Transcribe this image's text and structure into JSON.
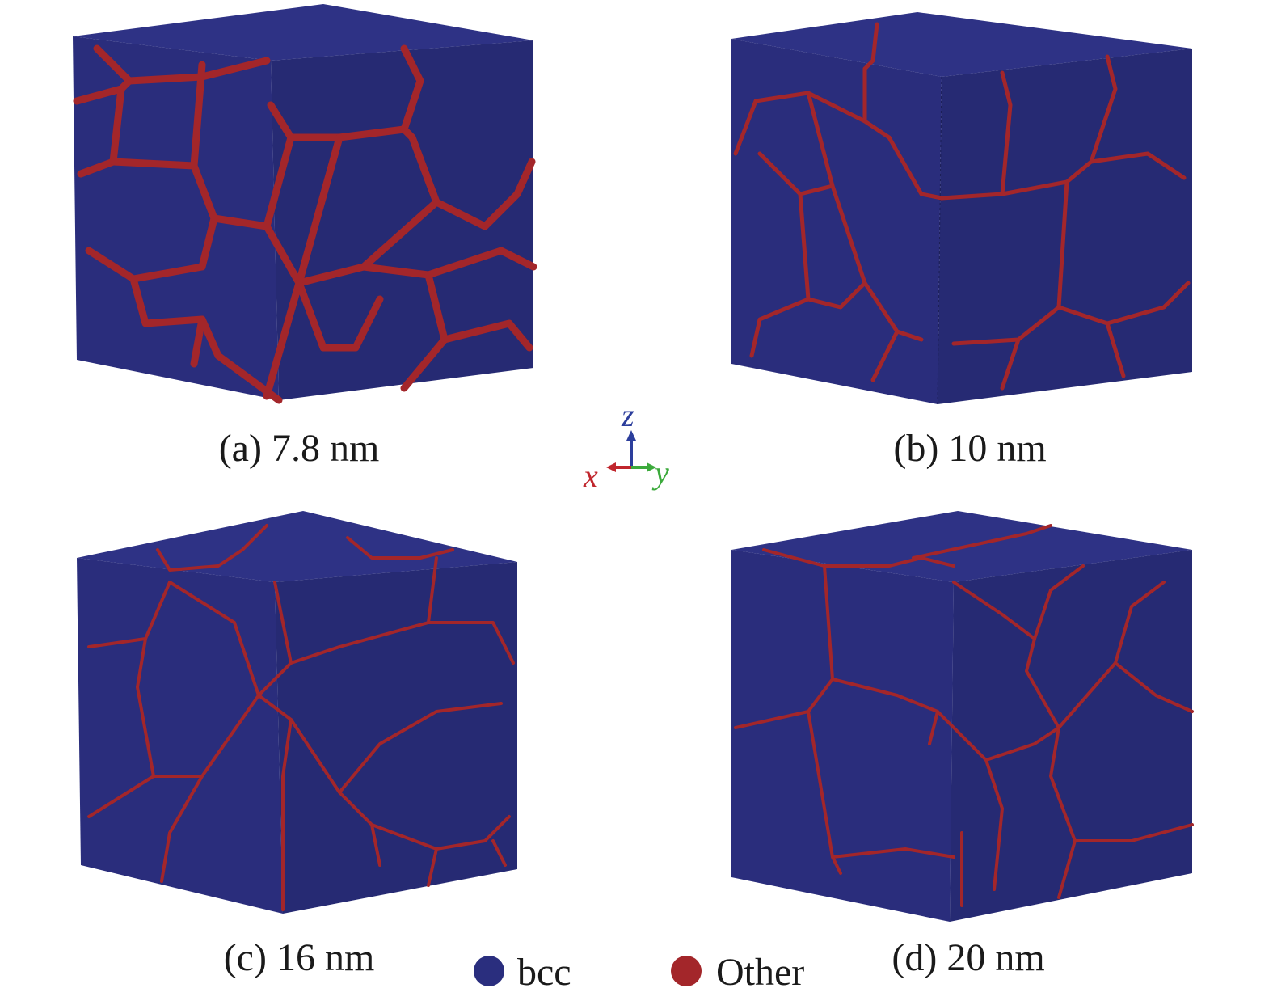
{
  "panels": [
    {
      "caption": "(a) 7.8 nm"
    },
    {
      "caption": "(b) 10 nm"
    },
    {
      "caption": "(c) 16 nm"
    },
    {
      "caption": "(d) 20 nm"
    }
  ],
  "axes": {
    "x": "x",
    "y": "y",
    "z": "z"
  },
  "legend": [
    {
      "label": "bcc"
    },
    {
      "label": "Other"
    }
  ]
}
